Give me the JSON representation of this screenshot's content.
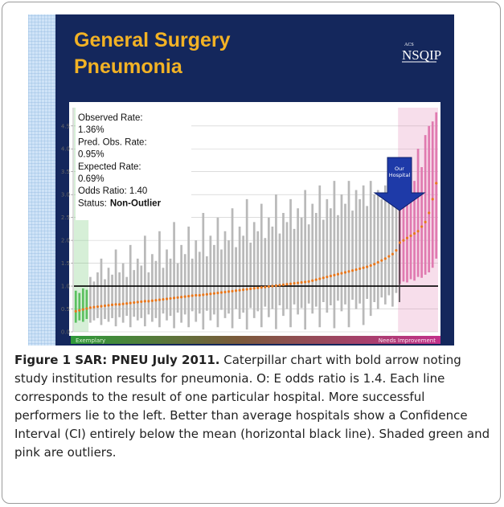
{
  "chart_data": {
    "type": "caterpillar",
    "title_lines": [
      "General Surgery",
      "Pneumonia"
    ],
    "logo": "NSQIP",
    "logo_small": "ACS",
    "stats": [
      "Observed Rate:",
      "1.36%",
      "Pred. Obs. Rate:",
      "0.95%",
      "Expected Rate:",
      "0.69%",
      "Odds Ratio: 1.40"
    ],
    "status": {
      "label": "Status:",
      "value": "Non-Outlier"
    },
    "arrow_lines": [
      "Our",
      "Hospital"
    ],
    "band_left": "Exemplary",
    "band_right": "Needs Improvement",
    "ylim": [
      0,
      4.9
    ],
    "yticks": [
      {
        "value": 0,
        "label": "0.0"
      },
      0.5,
      {
        "value": 1,
        "label": "1.0"
      },
      1.5,
      {
        "value": 2,
        "label": "2.0"
      },
      2.5,
      {
        "value": 3,
        "label": "3.0"
      },
      3.5,
      {
        "value": 4,
        "label": "4.0"
      },
      4.5
    ],
    "grid": true,
    "reference_line": 1,
    "point_color": "#e8781e",
    "groups": [
      {
        "color": "#5cc060",
        "shade": true,
        "values": [
          0.45,
          0.47,
          0.49,
          0.51
        ],
        "low": [
          0.2,
          0.25,
          0.22,
          0.28
        ],
        "high": [
          0.9,
          0.85,
          0.95,
          0.92
        ]
      },
      {
        "color": "#b9b9b9",
        "shade": false,
        "values": [
          0.53,
          0.54,
          0.55,
          0.56,
          0.57,
          0.58,
          0.59,
          0.6,
          0.6,
          0.61,
          0.62,
          0.63,
          0.64,
          0.65,
          0.66,
          0.67,
          0.67,
          0.68,
          0.69,
          0.7,
          0.71,
          0.72,
          0.73,
          0.74,
          0.75,
          0.76,
          0.77,
          0.78,
          0.79,
          0.8,
          0.8,
          0.81,
          0.82,
          0.83,
          0.84,
          0.85,
          0.86,
          0.87,
          0.88,
          0.89,
          0.9,
          0.91,
          0.92,
          0.93,
          0.94,
          0.95,
          0.96,
          0.97,
          0.98,
          0.99,
          1.0,
          1.01,
          1.02,
          1.03,
          1.04,
          1.05,
          1.06,
          1.07,
          1.08,
          1.09,
          1.1,
          1.12,
          1.14,
          1.16,
          1.18,
          1.2,
          1.22,
          1.24,
          1.26,
          1.28,
          1.3,
          1.32,
          1.34,
          1.36,
          1.38,
          1.4,
          1.42,
          1.45,
          1.48,
          1.52,
          1.56,
          1.6,
          1.65,
          1.7,
          1.78
        ],
        "low": [
          0.2,
          0.25,
          0.3,
          0.15,
          0.28,
          0.22,
          0.3,
          0.12,
          0.32,
          0.2,
          0.35,
          0.1,
          0.33,
          0.25,
          0.3,
          0.12,
          0.38,
          0.22,
          0.3,
          0.1,
          0.4,
          0.25,
          0.35,
          0.08,
          0.42,
          0.2,
          0.38,
          0.1,
          0.45,
          0.22,
          0.4,
          0.05,
          0.46,
          0.25,
          0.38,
          0.1,
          0.48,
          0.3,
          0.4,
          0.08,
          0.5,
          0.28,
          0.42,
          0.05,
          0.52,
          0.3,
          0.45,
          0.1,
          0.55,
          0.32,
          0.5,
          0.06,
          0.58,
          0.35,
          0.5,
          0.1,
          0.6,
          0.38,
          0.52,
          0.05,
          0.62,
          0.4,
          0.55,
          0.1,
          0.65,
          0.42,
          0.58,
          0.08,
          0.68,
          0.45,
          0.6,
          0.1,
          0.7,
          0.5,
          0.62,
          0.15,
          0.72,
          0.35,
          0.65,
          0.5,
          0.75,
          0.6,
          0.8,
          0.55,
          0.85
        ],
        "high": [
          1.2,
          1.1,
          1.3,
          1.6,
          1.15,
          1.4,
          1.25,
          1.8,
          1.3,
          1.5,
          1.2,
          1.9,
          1.35,
          1.6,
          1.45,
          2.1,
          1.3,
          1.7,
          1.55,
          2.2,
          1.4,
          1.8,
          1.6,
          2.4,
          1.5,
          1.9,
          1.7,
          2.3,
          1.6,
          2.0,
          1.75,
          2.6,
          1.65,
          2.1,
          1.9,
          2.5,
          1.8,
          2.2,
          2.0,
          2.7,
          1.85,
          2.3,
          2.1,
          2.9,
          1.95,
          2.4,
          2.2,
          2.8,
          2.05,
          2.5,
          2.3,
          3.0,
          2.15,
          2.6,
          2.4,
          2.9,
          2.25,
          2.7,
          2.5,
          3.1,
          2.35,
          2.8,
          2.6,
          3.2,
          2.45,
          2.9,
          2.7,
          3.3,
          2.55,
          3.0,
          2.8,
          3.3,
          2.65,
          3.1,
          2.9,
          3.2,
          2.75,
          3.3,
          3.0,
          3.1,
          2.9,
          3.2,
          3.0,
          3.3,
          3.1
        ]
      },
      {
        "color": "#e07ab0",
        "shade": true,
        "values": [
          1.95,
          2.0,
          2.05,
          2.1,
          2.15,
          2.2,
          2.3,
          2.4,
          2.6,
          2.9,
          3.25
        ],
        "low": [
          1.05,
          1.1,
          1.08,
          1.15,
          1.12,
          1.2,
          1.18,
          1.25,
          1.3,
          1.4,
          1.6
        ],
        "high": [
          3.2,
          3.5,
          3.0,
          3.8,
          3.3,
          4.0,
          3.6,
          4.3,
          4.5,
          4.6,
          4.8
        ]
      }
    ]
  },
  "caption": {
    "label": "Figure 1 SAR: PNEU July 2011.",
    "text": "Caterpillar chart with bold arrow noting study institution results for pneumonia. O: E odds ratio is 1.4. Each line corresponds to the result of one particular hospital. More successful performers lie to the left. Better than average hospitals show a Confidence Interval (CI) entirely below the mean (horizontal black line). Shaded green and pink are outliers."
  }
}
